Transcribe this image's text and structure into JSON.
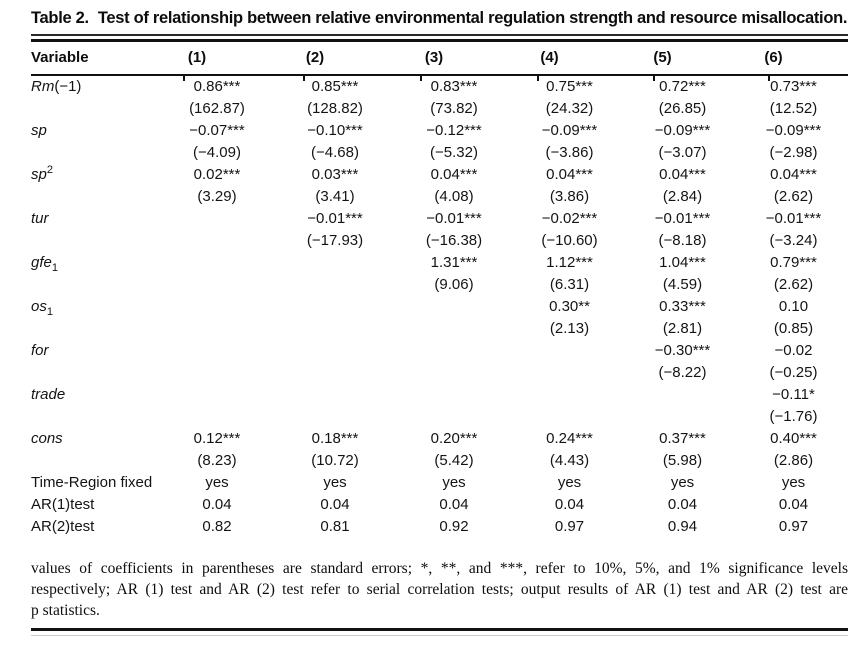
{
  "title": {
    "label": "Table 2.",
    "caption": "Test of relationship between relative environmental regulation strength and resource misallocation."
  },
  "table": {
    "variable_header": "Variable",
    "columns": [
      "(1)",
      "(2)",
      "(3)",
      "(4)",
      "(5)",
      "(6)"
    ],
    "rows": [
      {
        "label": {
          "base": "Rm",
          "roman": "(−1)"
        },
        "coef": [
          "0.86***",
          "0.85***",
          "0.83***",
          "0.75***",
          "0.72***",
          "0.73***"
        ],
        "se": [
          "(162.87)",
          "(128.82)",
          "(73.82)",
          "(24.32)",
          "(26.85)",
          "(12.52)"
        ]
      },
      {
        "label": {
          "base": "sp"
        },
        "coef": [
          "−0.07***",
          "−0.10***",
          "−0.12***",
          "−0.09***",
          "−0.09***",
          "−0.09***"
        ],
        "se": [
          "(−4.09)",
          "(−4.68)",
          "(−5.32)",
          "(−3.86)",
          "(−3.07)",
          "(−2.98)"
        ]
      },
      {
        "label": {
          "base": "sp",
          "sup": "2"
        },
        "coef": [
          "0.02***",
          "0.03***",
          "0.04***",
          "0.04***",
          "0.04***",
          "0.04***"
        ],
        "se": [
          "(3.29)",
          "(3.41)",
          "(4.08)",
          "(3.86)",
          "(2.84)",
          "(2.62)"
        ]
      },
      {
        "label": {
          "base": "tur"
        },
        "coef": [
          "",
          "−0.01***",
          "−0.01***",
          "−0.02***",
          "−0.01***",
          "−0.01***"
        ],
        "se": [
          "",
          "(−17.93)",
          "(−16.38)",
          "(−10.60)",
          "(−8.18)",
          "(−3.24)"
        ]
      },
      {
        "label": {
          "base": "gfe",
          "sub": "1"
        },
        "coef": [
          "",
          "",
          "1.31***",
          "1.12***",
          "1.04***",
          "0.79***"
        ],
        "se": [
          "",
          "",
          "(9.06)",
          "(6.31)",
          "(4.59)",
          "(2.62)"
        ]
      },
      {
        "label": {
          "base": "os",
          "sub": "1"
        },
        "coef": [
          "",
          "",
          "",
          "0.30**",
          "0.33***",
          "0.10"
        ],
        "se": [
          "",
          "",
          "",
          "(2.13)",
          "(2.81)",
          "(0.85)"
        ]
      },
      {
        "label": {
          "base": "for"
        },
        "coef": [
          "",
          "",
          "",
          "",
          "−0.30***",
          "−0.02"
        ],
        "se": [
          "",
          "",
          "",
          "",
          "(−8.22)",
          "(−0.25)"
        ]
      },
      {
        "label": {
          "base": "trade"
        },
        "coef": [
          "",
          "",
          "",
          "",
          "",
          "−0.11*"
        ],
        "se": [
          "",
          "",
          "",
          "",
          "",
          "(−1.76)"
        ]
      },
      {
        "label": {
          "base": "cons"
        },
        "coef": [
          "0.12***",
          "0.18***",
          "0.20***",
          "0.24***",
          "0.37***",
          "0.40***"
        ],
        "se": [
          "(8.23)",
          "(10.72)",
          "(5.42)",
          "(4.43)",
          "(5.98)",
          "(2.86)"
        ]
      }
    ],
    "info_rows": [
      {
        "label": "Time-Region fixed",
        "values": [
          "yes",
          "yes",
          "yes",
          "yes",
          "yes",
          "yes"
        ]
      },
      {
        "label": "AR(1)test",
        "values": [
          "0.04",
          "0.04",
          "0.04",
          "0.04",
          "0.04",
          "0.04"
        ]
      },
      {
        "label": "AR(2)test",
        "values": [
          "0.82",
          "0.81",
          "0.92",
          "0.97",
          "0.94",
          "0.97"
        ]
      }
    ]
  },
  "footnote": {
    "lines": [
      "values of coefficients in parentheses are standard errors; *, **, and ***, refer to 10%, 5%, and 1% significance levels",
      "respectively; AR (1) test and AR (2) test refer to serial correlation tests; output results of AR (1) test and AR (2) test are",
      "p statistics."
    ]
  },
  "colors": {
    "text": "#111111",
    "rule": "#111111"
  }
}
